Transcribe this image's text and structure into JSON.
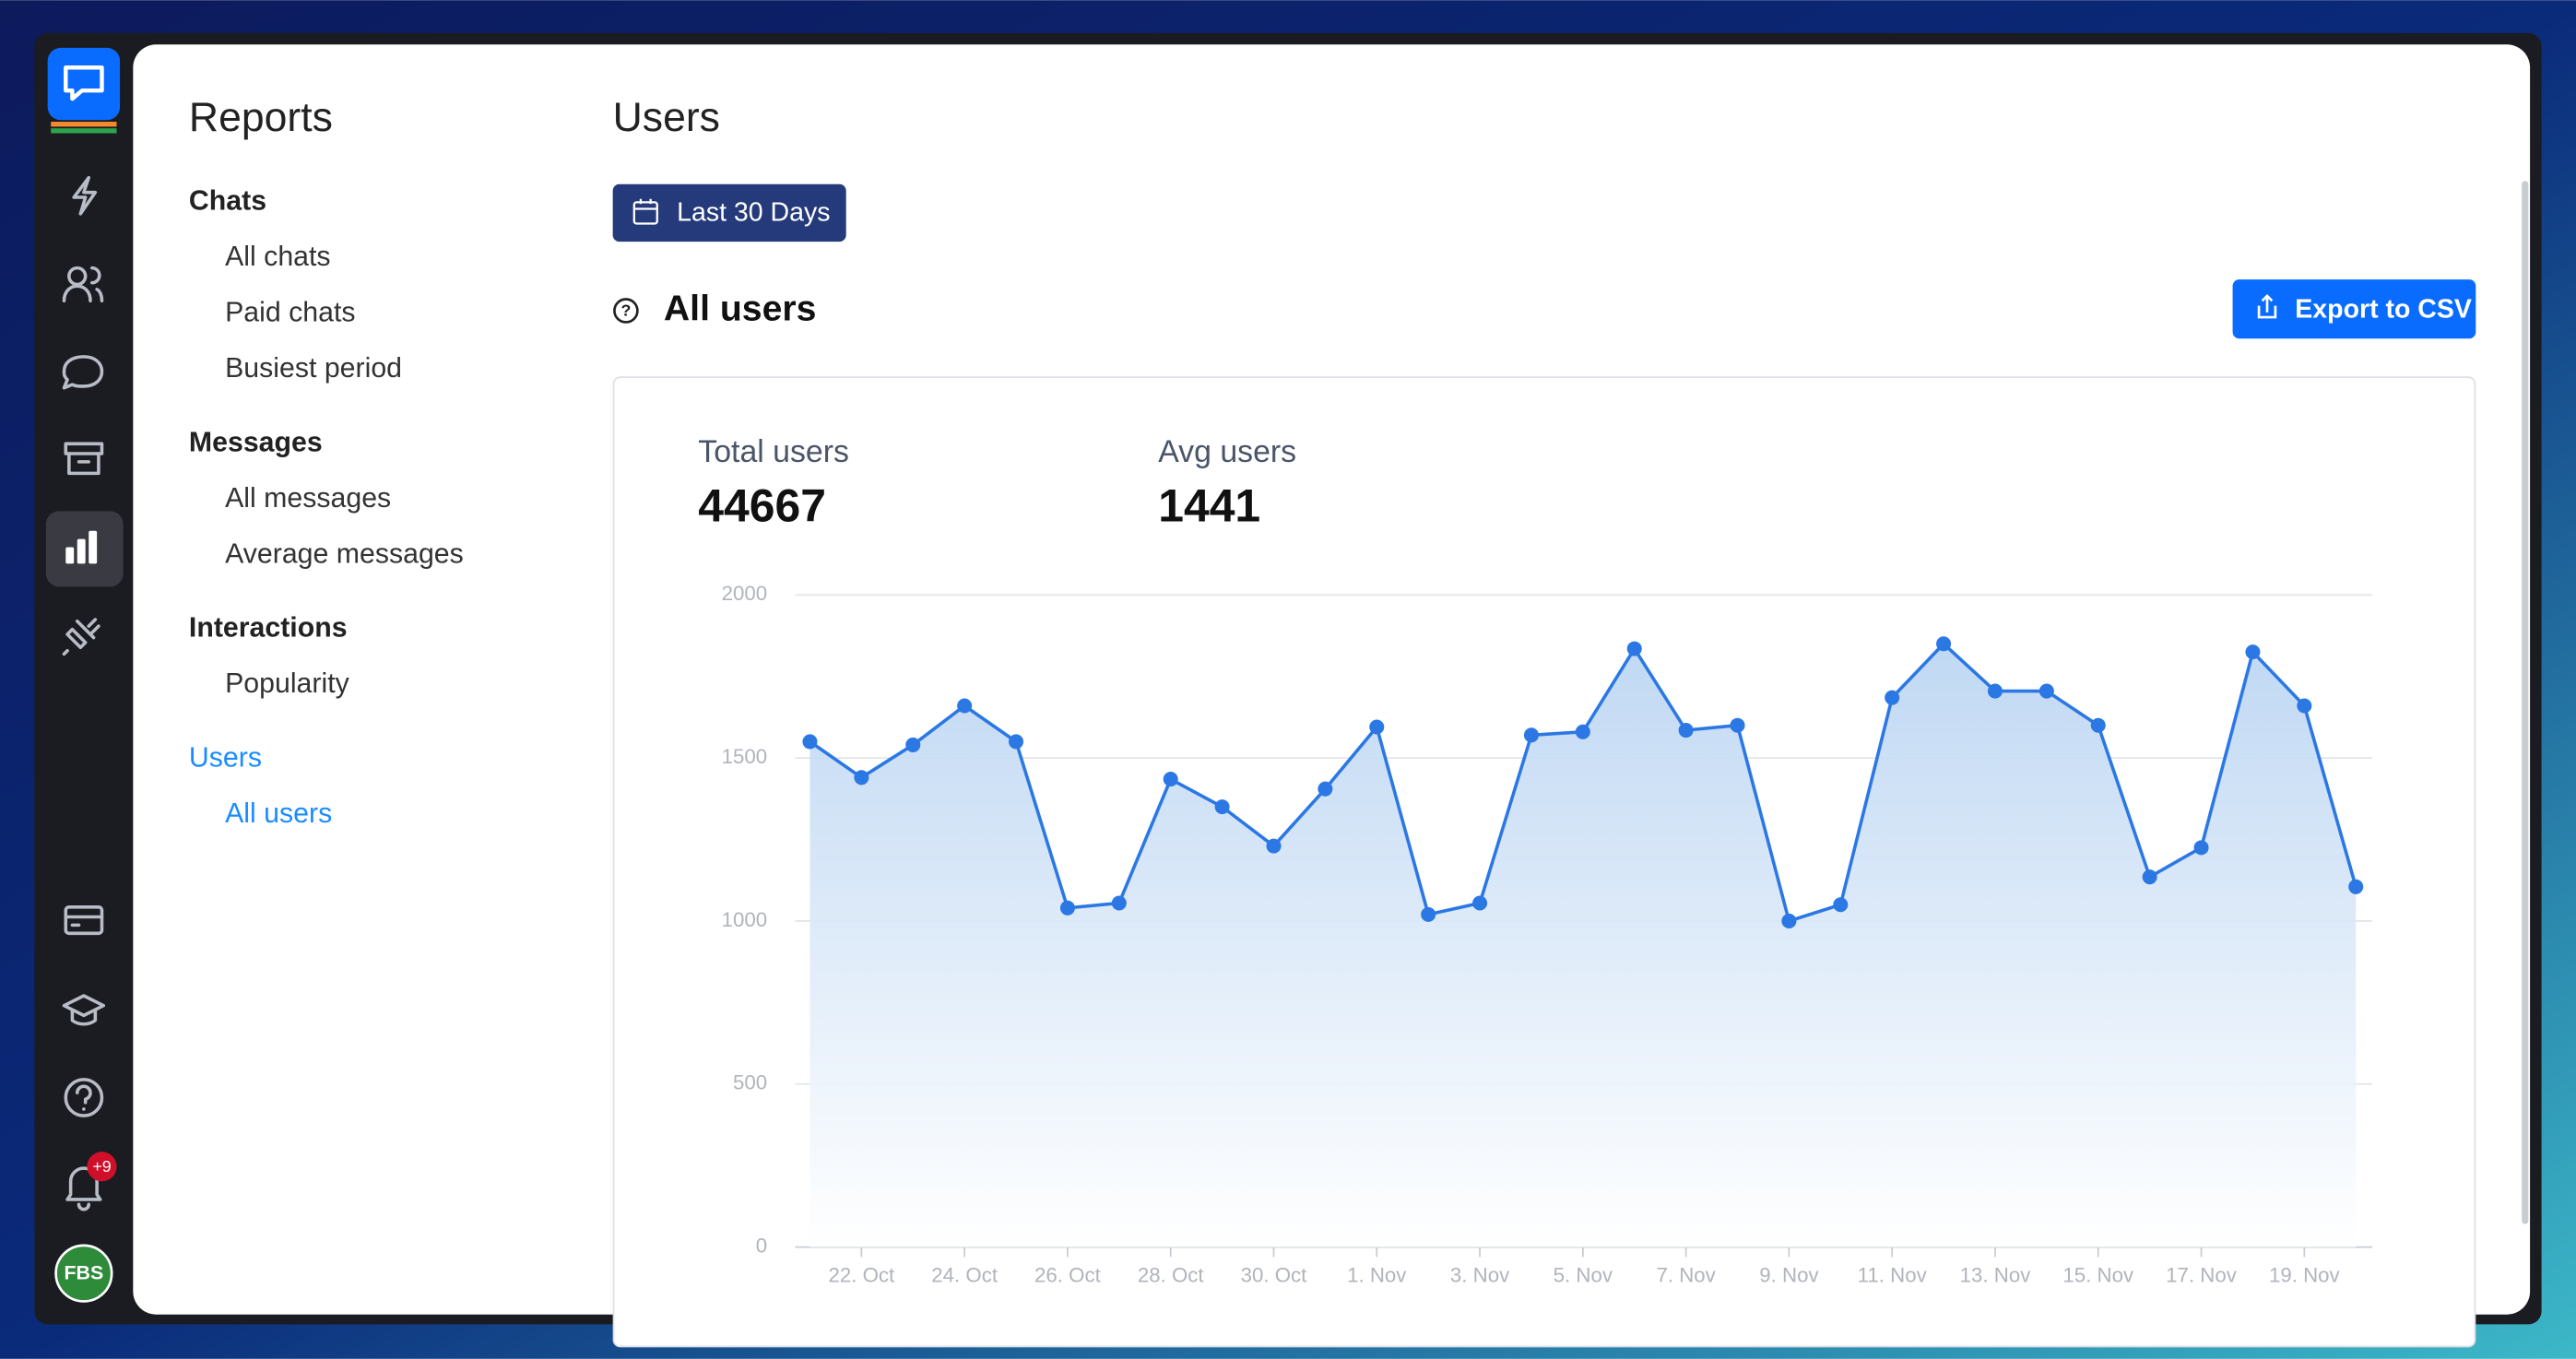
{
  "sidebar": {
    "title": "Reports",
    "groups": [
      {
        "heading": "Chats",
        "items": [
          "All chats",
          "Paid chats",
          "Busiest period"
        ]
      },
      {
        "heading": "Messages",
        "items": [
          "All messages",
          "Average messages"
        ]
      },
      {
        "heading": "Interactions",
        "items": [
          "Popularity"
        ]
      },
      {
        "heading": "Users",
        "items": [
          "All users"
        ]
      }
    ]
  },
  "notification_badge": "+9",
  "avatar": "FBS",
  "header": {
    "title": "Users",
    "date_range": "Last 30 Days",
    "section": "All users",
    "export": "Export to CSV"
  },
  "stats": [
    {
      "label": "Total users",
      "value": "44667"
    },
    {
      "label": "Avg users",
      "value": "1441"
    }
  ],
  "chart_data": {
    "type": "line",
    "categories": [
      null,
      "22. Oct",
      null,
      "24. Oct",
      null,
      "26. Oct",
      null,
      "28. Oct",
      null,
      "30. Oct",
      null,
      "1. Nov",
      null,
      "3. Nov",
      null,
      "5. Nov",
      null,
      "7. Nov",
      null,
      "9. Nov",
      null,
      "11. Nov",
      null,
      "13. Nov",
      null,
      "15. Nov",
      null,
      "17. Nov",
      null,
      "19. Nov",
      null
    ],
    "series": [
      {
        "name": "Users",
        "color": "#2b78e4",
        "values": [
          1550,
          1440,
          1540,
          1660,
          1550,
          1040,
          1055,
          1435,
          1350,
          1230,
          1405,
          1595,
          1020,
          1055,
          1570,
          1580,
          1835,
          1585,
          1600,
          1000,
          1050,
          1685,
          1850,
          1705,
          1705,
          1600,
          1135,
          1225,
          1825,
          1660,
          1105
        ]
      }
    ],
    "ylim": [
      0,
      2000
    ],
    "yticks": [
      0,
      500,
      1000,
      1500,
      2000
    ],
    "grid": true
  }
}
